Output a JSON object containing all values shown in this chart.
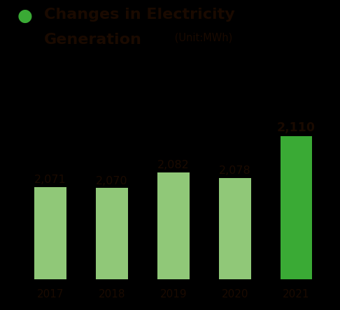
{
  "categories": [
    "2017",
    "2018",
    "2019",
    "2020",
    "2021"
  ],
  "values": [
    2071,
    2070,
    2082,
    2078,
    2110
  ],
  "labels": [
    "2,071",
    "2,070",
    "2,082",
    "2,078",
    "2,110"
  ],
  "bar_colors": [
    "#90c878",
    "#90c878",
    "#90c878",
    "#90c878",
    "#3aaa35"
  ],
  "title_line1": "Changes in Electricity",
  "title_line2": "Generation",
  "title_unit": " (Unit:MWh)",
  "legend_dot_color": "#3aaa35",
  "background_color": "#000000",
  "text_color": "#1a0a00",
  "label_fontsize": 11.5,
  "xlabel_fontsize": 11,
  "ylim_min": 2000,
  "ylim_max": 2160,
  "bar_width": 0.52
}
